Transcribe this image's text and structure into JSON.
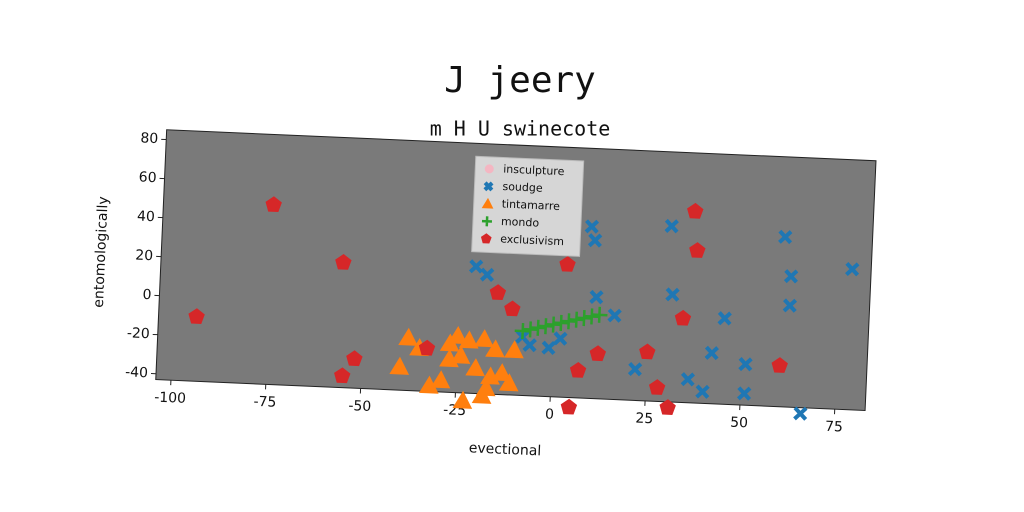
{
  "chart_data": {
    "type": "scatter",
    "title": "J jeery",
    "subtitle": "m H U swinecote",
    "x_label": "evectional",
    "y_label": "entomologically",
    "xlim": [
      -104,
      83
    ],
    "ylim": [
      -43,
      85
    ],
    "xticks": [
      -100,
      -75,
      -50,
      -25,
      0,
      25,
      50,
      75
    ],
    "yticks": [
      -40,
      -20,
      0,
      20,
      40,
      60,
      80
    ],
    "legend": "upper center",
    "series": [
      {
        "name": "insculpture",
        "color": "#f4b6c2",
        "marker": "circle",
        "x": [],
        "values": []
      },
      {
        "name": "soudge",
        "color": "#1f77b4",
        "marker": "x",
        "x": [
          -21,
          -18,
          -8,
          -6,
          -1,
          2,
          9,
          10,
          11,
          16,
          22,
          30,
          31,
          36,
          40,
          42,
          45,
          51,
          51,
          60,
          62,
          62,
          66,
          78
        ],
        "values": [
          22,
          18,
          -13,
          -17,
          -18,
          -13,
          45,
          38,
          9,
          0,
          -27,
          47,
          12,
          -31,
          -37,
          -17,
          1,
          -22,
          -37,
          44,
          24,
          9,
          -46,
          29
        ]
      },
      {
        "name": "tintamarre",
        "color": "#ff7f0e",
        "marker": "triangle",
        "x": [
          -38,
          -40,
          -35,
          -32,
          -29,
          -27,
          -27,
          -25,
          -24,
          -22,
          -20,
          -18,
          -18,
          -17,
          -16,
          -15,
          -13,
          -11,
          -10,
          -23
        ],
        "values": [
          -16,
          -31,
          -21,
          -40,
          -37,
          -18,
          -26,
          -14,
          -24,
          -16,
          -30,
          -15,
          -44,
          -40,
          -34,
          -20,
          -32,
          -37,
          -20,
          -47
        ]
      },
      {
        "name": "mondo",
        "color": "#2ca02c",
        "marker": "plus",
        "x": [
          -8,
          -6,
          -4,
          -2,
          0,
          2,
          4,
          6,
          8,
          10,
          12
        ],
        "values": [
          -10,
          -9,
          -8,
          -7,
          -6,
          -5,
          -4,
          -3,
          -2,
          -1,
          0
        ]
      },
      {
        "name": "exclusivism",
        "color": "#d62728",
        "marker": "pentagon",
        "x": [
          -75,
          -56,
          -94,
          -55,
          -52,
          -33,
          -15,
          -11,
          3,
          12,
          7,
          5,
          25,
          28,
          31,
          36,
          37,
          34,
          60
        ],
        "values": [
          49,
          21,
          -10,
          -37,
          -28,
          -21,
          9,
          1,
          25,
          -20,
          -29,
          -48,
          -18,
          -36,
          -46,
          55,
          35,
          0,
          -22
        ]
      }
    ]
  }
}
